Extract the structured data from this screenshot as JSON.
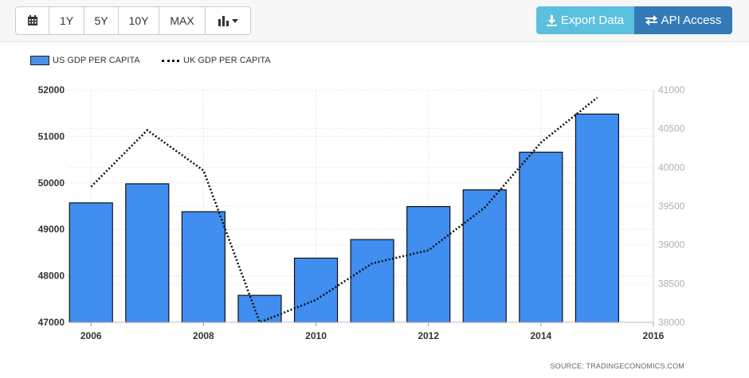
{
  "toolbar": {
    "ranges": [
      "1Y",
      "5Y",
      "10Y",
      "MAX"
    ],
    "export_label": "Export Data",
    "api_label": "API Access"
  },
  "chart_data": {
    "type": "bar",
    "title": "",
    "x": [
      2006,
      2007,
      2008,
      2009,
      2010,
      2011,
      2012,
      2013,
      2014,
      2015
    ],
    "series": [
      {
        "name": "US GDP PER CAPITA",
        "type": "bar",
        "axis": "left",
        "color": "#3f8ef0",
        "values": [
          49570,
          49980,
          49380,
          47580,
          48380,
          48780,
          49490,
          49850,
          50660,
          51480
        ]
      },
      {
        "name": "UK GDP PER CAPITA",
        "type": "line",
        "style": "dotted",
        "axis": "right",
        "color": "#111111",
        "values": [
          39750,
          40480,
          39960,
          38000,
          38290,
          38760,
          38930,
          39480,
          40320,
          40900
        ]
      }
    ],
    "xticks": [
      2006,
      2008,
      2010,
      2012,
      2014,
      2016
    ],
    "xlim": [
      2005.6,
      2016
    ],
    "ylim_left": [
      47000,
      52000
    ],
    "yticks_left": [
      47000,
      48000,
      49000,
      50000,
      51000,
      52000
    ],
    "ylim_right": [
      38000,
      41000
    ],
    "yticks_right": [
      38000,
      38500,
      39000,
      39500,
      40000,
      40500,
      41000
    ],
    "grid": true,
    "legend_position": "top-left",
    "source": "SOURCE: TRADINGECONOMICS.COM"
  }
}
